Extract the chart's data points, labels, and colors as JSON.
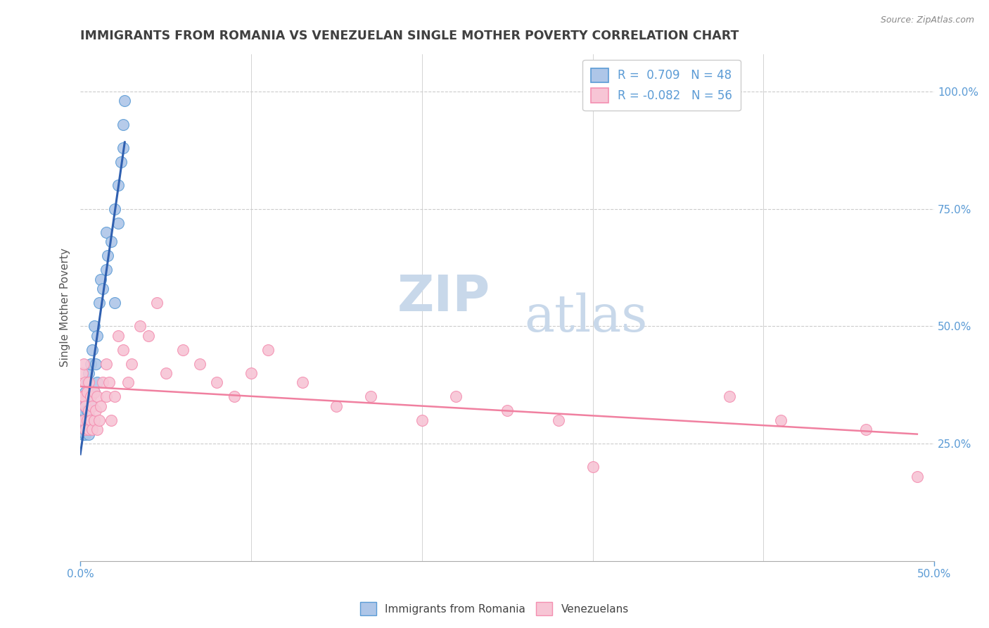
{
  "title": "IMMIGRANTS FROM ROMANIA VS VENEZUELAN SINGLE MOTHER POVERTY CORRELATION CHART",
  "source_text": "Source: ZipAtlas.com",
  "ylabel": "Single Mother Poverty",
  "xlim": [
    0.0,
    0.5
  ],
  "ylim": [
    0.0,
    1.08
  ],
  "ytick_labels": [
    "25.0%",
    "50.0%",
    "75.0%",
    "100.0%"
  ],
  "ytick_values": [
    0.25,
    0.5,
    0.75,
    1.0
  ],
  "legend_R1": "0.709",
  "legend_N1": "48",
  "legend_R2": "-0.082",
  "legend_N2": "56",
  "romania_color": "#aec6e8",
  "venezuela_color": "#f7c5d5",
  "romania_edge": "#5b9bd5",
  "venezuela_edge": "#f48fb1",
  "line_romania_color": "#3060b0",
  "line_venezuela_color": "#f080a0",
  "watermark_zip": "ZIP",
  "watermark_atlas": "atlas",
  "watermark_color_zip": "#c8d8ea",
  "watermark_color_atlas": "#c8d8ea",
  "title_color": "#404040",
  "label_color": "#5b9bd5",
  "romania_scatter_x": [
    0.0005,
    0.001,
    0.001,
    0.0015,
    0.002,
    0.002,
    0.002,
    0.002,
    0.003,
    0.003,
    0.003,
    0.003,
    0.003,
    0.003,
    0.004,
    0.004,
    0.004,
    0.004,
    0.005,
    0.005,
    0.005,
    0.005,
    0.005,
    0.006,
    0.006,
    0.006,
    0.007,
    0.007,
    0.008,
    0.008,
    0.009,
    0.01,
    0.01,
    0.011,
    0.012,
    0.013,
    0.015,
    0.015,
    0.016,
    0.018,
    0.02,
    0.02,
    0.022,
    0.022,
    0.024,
    0.025,
    0.025,
    0.026
  ],
  "romania_scatter_y": [
    0.29,
    0.28,
    0.32,
    0.27,
    0.28,
    0.3,
    0.32,
    0.34,
    0.27,
    0.28,
    0.29,
    0.3,
    0.33,
    0.36,
    0.28,
    0.3,
    0.32,
    0.38,
    0.27,
    0.29,
    0.31,
    0.35,
    0.4,
    0.3,
    0.35,
    0.42,
    0.33,
    0.45,
    0.36,
    0.5,
    0.42,
    0.38,
    0.48,
    0.55,
    0.6,
    0.58,
    0.62,
    0.7,
    0.65,
    0.68,
    0.55,
    0.75,
    0.72,
    0.8,
    0.85,
    0.88,
    0.93,
    0.98
  ],
  "venezuela_scatter_x": [
    0.001,
    0.001,
    0.002,
    0.002,
    0.002,
    0.003,
    0.003,
    0.003,
    0.004,
    0.004,
    0.005,
    0.005,
    0.005,
    0.006,
    0.006,
    0.007,
    0.007,
    0.008,
    0.008,
    0.009,
    0.01,
    0.01,
    0.011,
    0.012,
    0.013,
    0.015,
    0.015,
    0.017,
    0.018,
    0.02,
    0.022,
    0.025,
    0.028,
    0.03,
    0.035,
    0.04,
    0.045,
    0.05,
    0.06,
    0.07,
    0.08,
    0.09,
    0.1,
    0.11,
    0.13,
    0.15,
    0.17,
    0.2,
    0.22,
    0.25,
    0.28,
    0.3,
    0.38,
    0.41,
    0.46,
    0.49
  ],
  "venezuela_scatter_y": [
    0.35,
    0.4,
    0.3,
    0.35,
    0.42,
    0.28,
    0.33,
    0.38,
    0.3,
    0.36,
    0.28,
    0.32,
    0.38,
    0.3,
    0.35,
    0.28,
    0.33,
    0.3,
    0.36,
    0.32,
    0.28,
    0.35,
    0.3,
    0.33,
    0.38,
    0.35,
    0.42,
    0.38,
    0.3,
    0.35,
    0.48,
    0.45,
    0.38,
    0.42,
    0.5,
    0.48,
    0.55,
    0.4,
    0.45,
    0.42,
    0.38,
    0.35,
    0.4,
    0.45,
    0.38,
    0.33,
    0.35,
    0.3,
    0.35,
    0.32,
    0.3,
    0.2,
    0.35,
    0.3,
    0.28,
    0.18
  ]
}
